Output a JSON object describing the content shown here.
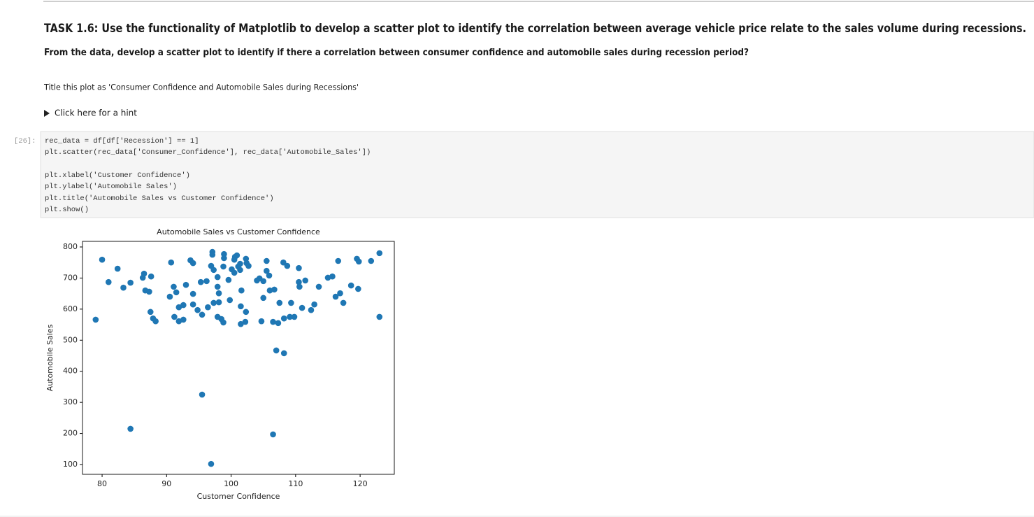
{
  "header": {
    "title": "TASK 1.6: Use the functionality of Matplotlib to develop a scatter plot to identify the correlation between average vehicle price relate to the sales volume during recessions.",
    "subtitle": "From the data, develop a scatter plot to identify if there a correlation between consumer confidence and automobile sales during recession period?"
  },
  "instruction": "Title this plot as 'Consumer Confidence and Automobile Sales during Recessions'",
  "hint": "Click here for a hint",
  "cell": {
    "prompt": "[26]:",
    "code": [
      "rec_data = df[df['Recession'] == 1]",
      "plt.scatter(rec_data['Consumer_Confidence'], rec_data['Automobile_Sales'])",
      "plt.xlabel('Customer Confidence')",
      "plt.ylabel('Automobile Sales')",
      "plt.title('Automobile Sales vs Customer Confidence')",
      "plt.show()"
    ]
  },
  "chart_data": {
    "type": "scatter",
    "title": "Automobile Sales vs Customer Confidence",
    "xlabel": "Customer Confidence",
    "ylabel": "Automobile Sales",
    "color": "#1f77b4",
    "xlim": [
      76.96,
      125.3
    ],
    "ylim": [
      68.5,
      818
    ],
    "xticks": [
      80,
      90,
      100,
      110,
      120
    ],
    "yticks": [
      100,
      200,
      300,
      400,
      500,
      600,
      700,
      800
    ],
    "x": [
      79.0,
      80.0,
      81.0,
      82.4,
      83.3,
      84.4,
      84.4,
      86.3,
      86.5,
      86.7,
      87.3,
      87.6,
      87.5,
      87.9,
      88.3,
      90.5,
      90.7,
      91.1,
      91.2,
      91.5,
      91.9,
      91.9,
      92.6,
      92.6,
      93.0,
      93.7,
      94.1,
      94.1,
      94.1,
      94.8,
      95.3,
      95.5,
      95.5,
      96.2,
      96.4,
      96.9,
      97.1,
      97.1,
      97.3,
      97.3,
      96.9,
      97.9,
      97.9,
      98.1,
      97.9,
      98.1,
      98.5,
      98.8,
      98.8,
      98.9,
      98.9,
      99.6,
      99.8,
      100.1,
      100.5,
      100.6,
      100.5,
      100.9,
      101.1,
      101.4,
      101.4,
      101.5,
      101.6,
      101.5,
      102.2,
      102.3,
      102.3,
      102.4,
      102.7,
      104.0,
      104.4,
      104.7,
      105.0,
      105.0,
      105.5,
      105.5,
      105.9,
      106.0,
      106.7,
      106.5,
      106.5,
      107.0,
      107.3,
      107.5,
      108.1,
      108.2,
      108.2,
      108.7,
      109.1,
      109.3,
      109.8,
      110.5,
      110.5,
      110.6,
      111.0,
      111.5,
      112.4,
      112.9,
      113.6,
      115.0,
      115.7,
      116.2,
      116.6,
      116.9,
      117.4,
      118.6,
      119.5,
      119.8,
      119.7,
      121.7,
      123.0,
      123.0
    ],
    "values": [
      566,
      759,
      687,
      730,
      669,
      685,
      215,
      701,
      714,
      660,
      656,
      705,
      591,
      570,
      561,
      640,
      750,
      672,
      575,
      654,
      606,
      561,
      613,
      566,
      678,
      757,
      748,
      649,
      615,
      597,
      687,
      582,
      325,
      690,
      606,
      739,
      784,
      775,
      726,
      620,
      102,
      703,
      672,
      651,
      575,
      622,
      568,
      557,
      737,
      777,
      764,
      694,
      629,
      728,
      759,
      768,
      717,
      773,
      737,
      726,
      746,
      609,
      660,
      552,
      559,
      591,
      762,
      748,
      739,
      692,
      699,
      561,
      690,
      636,
      755,
      723,
      708,
      660,
      663,
      559,
      197,
      467,
      555,
      620,
      750,
      458,
      570,
      739,
      575,
      620,
      575,
      732,
      687,
      672,
      604,
      692,
      597,
      615,
      672,
      701,
      705,
      640,
      755,
      651,
      620,
      676,
      762,
      753,
      665,
      755,
      780,
      575
    ]
  }
}
